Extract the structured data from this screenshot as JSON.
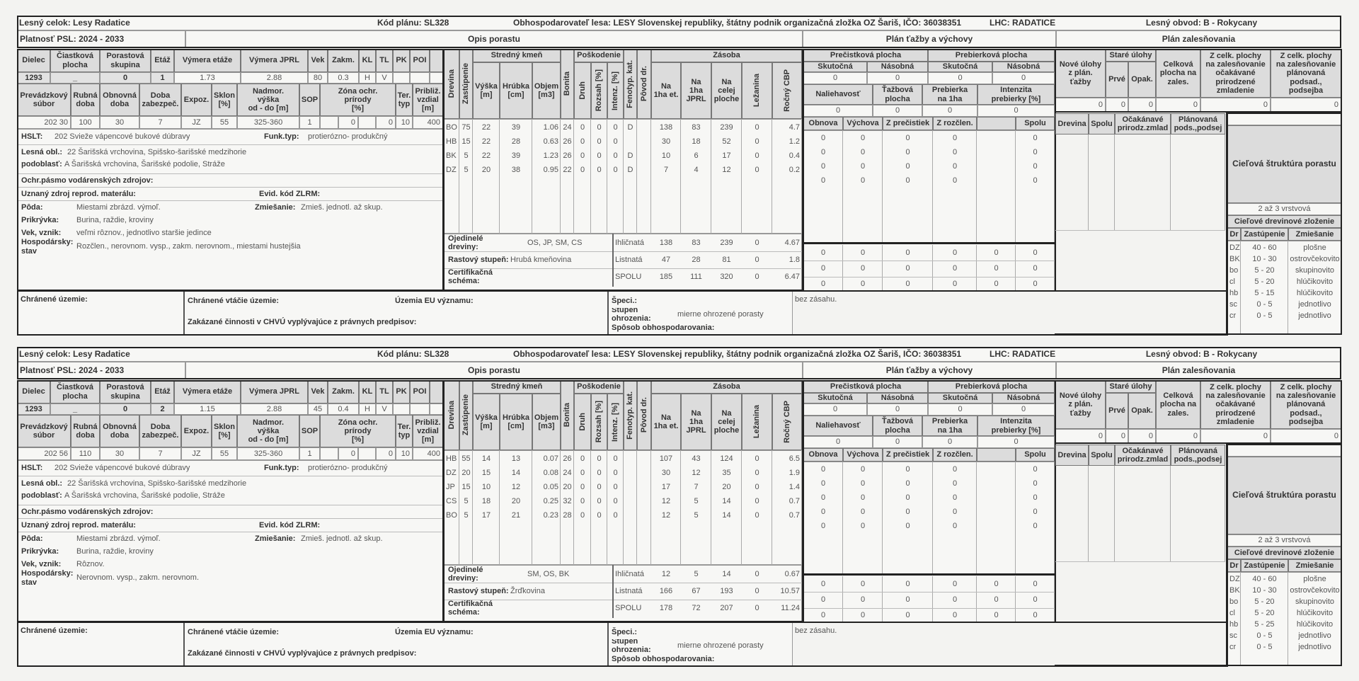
{
  "labels": {
    "stand_h1": [
      "Dielec",
      "Čiastková\nplocha",
      "Porastová\nskupina",
      "Etáž",
      "Výmera etáže",
      "Výmera JPRL",
      "Vek",
      "Zakm.",
      "KL",
      "TL",
      "PK",
      "POI",
      ""
    ],
    "stand_h2": [
      "Prevádzkový\nsúbor",
      "Rubná\ndoba",
      "Obnovná\ndoba",
      "Doba\nzabezpeč.",
      "Expoz.",
      "Sklon\n[%]",
      "Nadmor.\nvýška\nod - do [m]",
      "SOP",
      "Zóna ochr.\nprírody\n[%]",
      "Ter.\ntyp",
      "Približ.\nvzdial\n[m]"
    ],
    "tree_groups": [
      "Stredný kmeň",
      "Poškodenie",
      "Zásoba"
    ],
    "tree_h": [
      "Drevina",
      "Zastúpenie",
      "Výška\n[m]",
      "Hrúbka\n[cm]",
      "Objem\n[m3]",
      "Bonita",
      "Druh",
      "Rozsah [%]",
      "Intenz. [%]",
      "Fenotyp. kat.",
      "Pôvod dr.",
      "Na\n1ha et.",
      "Na\n1ha\nJPRL",
      "Na\ncelej\nploche",
      "Ležanina",
      "Ročný CBP"
    ],
    "tazba_groups": [
      "Prečistková plocha",
      "Prebierková plocha"
    ],
    "tazba_sub": [
      "Skutočná",
      "Násobná",
      "Skutočná",
      "Násobná"
    ],
    "tazba_h2": [
      "Naliehavosť",
      "Ťažbová\nplocha",
      "Prebierka\nna 1ha",
      "Intenzita\nprebierky [%]"
    ],
    "tazba_h3": [
      "Obnova",
      "Výchova",
      "Z prečistiek",
      "Z rozčlen.",
      "",
      "Spolu"
    ],
    "zales_h": [
      "Nové úlohy\nz plán.\nťažby",
      "Staré úlohy",
      "Prvé",
      "Opak.",
      "Celková\nplocha na\nzales.",
      "Z celk. plochy\nna zalesňovanie\nočakávané\nprirodzené\nzmladenie",
      "Z celk. plochy\nna zalesňovanie\nplánovaná\npodsad.,\npodsejba"
    ],
    "zales_h2": [
      "Drevina",
      "Spolu",
      "Očakánavé\nprirodz.zmlad",
      "Plánovaná\npods.,podsej"
    ],
    "cielova": "Cieľová štruktúra porastu",
    "zlozenie_title": "Cieľové drevinové zloženie",
    "zlozenie_h": [
      "Dr",
      "Zastúpenie",
      "Zmiešanie"
    ],
    "info": {
      "hslt": "HSLT:",
      "funk": "Funk.typ:",
      "lesna_obl": "Lesná obl.:",
      "podoblast": "podoblasť:",
      "ochr": "Ochr.pásmo vodárenských zdrojov:",
      "uznany": "Uznaný zdroj reprod. materálu:",
      "evid": "Evid. kód ZLRM:",
      "poda": "Pôda:",
      "zmiesanie": "Zmiešanie:",
      "prikryvka": "Prikrývka:",
      "vek": "Vek, vznik:",
      "hosp": "Hospodársky:\nstav",
      "ojedinele": "Ojedinelé dreviny:",
      "rastovy": "Rastový stupeň:",
      "cert": "Certifikačná schéma:"
    },
    "bottom": {
      "chranene": "Chránené územie:",
      "vtacie": "Chránené vtáčie územie:",
      "eu": "Územia EU významu:",
      "zakazane": "Zakázané činnosti v CHVÚ vyplývajúce z právnych predpisov:",
      "speci": "Špeci.:",
      "stupen": "Stupeň ohrozenia:",
      "sposob": "Spôsob obhospodarovania:"
    }
  },
  "blocks": [
    {
      "header": {
        "lesny_celok": "Lesný celok: Lesy Radatice",
        "kod_planu": "Kód plánu: SL328",
        "obhospodarovatel": "Obhospodarovateľ lesa: LESY Slovenskej republiky, štátny podnik organizačná zložka OZ Šariš, IČO: 36038351",
        "lhc": "LHC: RADATICE",
        "lesny_obvod": "Lesný obvod: B - Rokycany",
        "platnost": "Platnosť PSL: 2024 - 2033",
        "opis": "Opis porastu",
        "plan_tazby": "Plán ťažby a výchovy",
        "plan_zales": "Plán zalesňovania"
      },
      "stand_v1": [
        "1293",
        "_",
        "0",
        "1",
        "1.73",
        "2.88",
        "80",
        "0.3",
        "H",
        "V",
        "",
        "",
        ""
      ],
      "stand_v2": [
        "202 30",
        "100",
        "30",
        "7",
        "JZ",
        "55",
        "325-360",
        "1",
        "",
        "0",
        "",
        "0",
        "10",
        "400"
      ],
      "info": {
        "hslt": "202 Svieže vápencové bukové dúbravy",
        "funk": "protierózno- produkčný",
        "lesna_obl": "22 Šarišská vrchovina, Spišsko-šarišské medzihorie",
        "podoblast": "A Šarišská vrchovina, Šarišské podolie, Stráže",
        "poda": "Miestami zbrázd. výmoľ.",
        "zmiesanie": "Zmieš. jednotl. až skup.",
        "prikryvka": "Burina, raždie, kroviny",
        "vek": "veľmi rôznov., jednotlivo staršie jedince",
        "hosp": "Rozčlen., nerovnom. vysp., zakm. nerovnom., miestami hustejšia",
        "ojedinele": "OS, JP, SM, CS",
        "rastovy": "Hrubá kmeňovina"
      },
      "trees": [
        [
          "BO",
          "75",
          "22",
          "39",
          "1.06",
          "24",
          "0",
          "0",
          "0",
          "D",
          "",
          "138",
          "83",
          "239",
          "0",
          "4.7"
        ],
        [
          "HB",
          "15",
          "22",
          "28",
          "0.63",
          "26",
          "0",
          "0",
          "0",
          "",
          "",
          "30",
          "18",
          "52",
          "0",
          "1.2"
        ],
        [
          "BK",
          "5",
          "22",
          "39",
          "1.23",
          "26",
          "0",
          "0",
          "0",
          "D",
          "",
          "10",
          "6",
          "17",
          "0",
          "0.4"
        ],
        [
          "DZ",
          "5",
          "20",
          "38",
          "0.95",
          "22",
          "0",
          "0",
          "0",
          "D",
          "",
          "7",
          "4",
          "12",
          "0",
          "0.2"
        ]
      ],
      "summary": [
        [
          "Ihličnatá",
          "138",
          "83",
          "239",
          "0",
          "4.67"
        ],
        [
          "Listnatá",
          "47",
          "28",
          "81",
          "0",
          "1.8"
        ],
        [
          "SPOLU",
          "185",
          "111",
          "320",
          "0",
          "6.47"
        ]
      ],
      "tazba_v1": [
        "0",
        "0",
        "0",
        "0"
      ],
      "tazba_v2": [
        "0",
        "0",
        "0",
        "0"
      ],
      "tazba_rows": [
        [
          "0",
          "0",
          "0",
          "0",
          "",
          "0"
        ],
        [
          "0",
          "0",
          "0",
          "0",
          "",
          "0"
        ],
        [
          "0",
          "0",
          "0",
          "0",
          "",
          "0"
        ],
        [
          "0",
          "0",
          "0",
          "0",
          "",
          "0"
        ]
      ],
      "tazba_totals": [
        [
          "0",
          "0",
          "0",
          "0",
          "0",
          "0"
        ],
        [
          "0",
          "0",
          "0",
          "0",
          "0",
          "0"
        ],
        [
          "0",
          "0",
          "0",
          "0",
          "0",
          "0"
        ]
      ],
      "zales_v": [
        "0",
        "0",
        "0",
        "0",
        "0",
        "0"
      ],
      "vrstvova": "2 až 3 vrstvová",
      "zlozenie": [
        [
          "DZ",
          "40 - 60",
          "plošne"
        ],
        [
          "BK",
          "10 - 30",
          "ostrovčekovito"
        ],
        [
          "bo",
          "5 - 20",
          "skupinovito"
        ],
        [
          "cl",
          "5 - 20",
          "hlúčikovito"
        ],
        [
          "hb",
          "5 - 15",
          "hlúčikovito"
        ],
        [
          "sc",
          "0 - 5",
          "jednotlivo"
        ],
        [
          "cr",
          "0 - 5",
          "jednotlivo"
        ]
      ],
      "bottom": {
        "stupen": "mierne ohrozené porasty",
        "bez": "bez zásahu."
      }
    },
    {
      "header": {
        "lesny_celok": "Lesný celok: Lesy Radatice",
        "kod_planu": "Kód plánu: SL328",
        "obhospodarovatel": "Obhospodarovateľ lesa: LESY Slovenskej republiky, štátny podnik organizačná zložka OZ Šariš, IČO: 36038351",
        "lhc": "LHC: RADATICE",
        "lesny_obvod": "Lesný obvod: B - Rokycany",
        "platnost": "Platnosť PSL: 2024 - 2033",
        "opis": "Opis porastu",
        "plan_tazby": "Plán ťažby a výchovy",
        "plan_zales": "Plán zalesňovania"
      },
      "stand_v1": [
        "1293",
        "_",
        "0",
        "2",
        "1.15",
        "2.88",
        "45",
        "0.4",
        "H",
        "V",
        "",
        "",
        ""
      ],
      "stand_v2": [
        "202 56",
        "110",
        "30",
        "7",
        "JZ",
        "55",
        "325-360",
        "1",
        "",
        "0",
        "",
        "0",
        "10",
        "400"
      ],
      "info": {
        "hslt": "202 Svieže vápencové bukové dúbravy",
        "funk": "protierózno- produkčný",
        "lesna_obl": "22 Šarišská vrchovina, Spišsko-šarišské medzihorie",
        "podoblast": "A Šarišská vrchovina, Šarišské podolie, Stráže",
        "poda": "Miestami zbrázd. výmoľ.",
        "zmiesanie": "Zmieš. jednotl. až skup.",
        "prikryvka": "Burina, raždie, kroviny",
        "vek": "Rôznov.",
        "hosp": "Nerovnom. vysp., zakm. nerovnom.",
        "ojedinele": "SM, OS, BK",
        "rastovy": "Žrďkovina"
      },
      "trees": [
        [
          "HB",
          "55",
          "14",
          "13",
          "0.07",
          "26",
          "0",
          "0",
          "0",
          "",
          "",
          "107",
          "43",
          "124",
          "0",
          "6.5"
        ],
        [
          "DZ",
          "20",
          "15",
          "14",
          "0.08",
          "24",
          "0",
          "0",
          "0",
          "",
          "",
          "30",
          "12",
          "35",
          "0",
          "1.9"
        ],
        [
          "JP",
          "15",
          "10",
          "12",
          "0.05",
          "20",
          "0",
          "0",
          "0",
          "",
          "",
          "17",
          "7",
          "20",
          "0",
          "1.4"
        ],
        [
          "CS",
          "5",
          "18",
          "20",
          "0.25",
          "32",
          "0",
          "0",
          "0",
          "",
          "",
          "12",
          "5",
          "14",
          "0",
          "0.7"
        ],
        [
          "BO",
          "5",
          "17",
          "21",
          "0.23",
          "28",
          "0",
          "0",
          "0",
          "",
          "",
          "12",
          "5",
          "14",
          "0",
          "0.7"
        ]
      ],
      "summary": [
        [
          "Ihličnatá",
          "12",
          "5",
          "14",
          "0",
          "0.67"
        ],
        [
          "Listnatá",
          "166",
          "67",
          "193",
          "0",
          "10.57"
        ],
        [
          "SPOLU",
          "178",
          "72",
          "207",
          "0",
          "11.24"
        ]
      ],
      "tazba_v1": [
        "0",
        "0",
        "0",
        "0"
      ],
      "tazba_v2": [
        "0",
        "0",
        "0",
        "0"
      ],
      "tazba_rows": [
        [
          "0",
          "0",
          "0",
          "0",
          "",
          "0"
        ],
        [
          "0",
          "0",
          "0",
          "0",
          "",
          "0"
        ],
        [
          "0",
          "0",
          "0",
          "0",
          "",
          "0"
        ],
        [
          "0",
          "0",
          "0",
          "0",
          "",
          "0"
        ],
        [
          "0",
          "0",
          "0",
          "0",
          "",
          "0"
        ]
      ],
      "tazba_totals": [
        [
          "0",
          "0",
          "0",
          "0",
          "0",
          "0"
        ],
        [
          "0",
          "0",
          "0",
          "0",
          "0",
          "0"
        ],
        [
          "0",
          "0",
          "0",
          "0",
          "0",
          "0"
        ]
      ],
      "zales_v": [
        "0",
        "0",
        "0",
        "0",
        "0",
        "0"
      ],
      "vrstvova": "2 až 3 vrstvová",
      "zlozenie": [
        [
          "DZ",
          "40 - 60",
          "plošne"
        ],
        [
          "BK",
          "10 - 30",
          "ostrovčekovito"
        ],
        [
          "bo",
          "5 - 20",
          "skupinovito"
        ],
        [
          "cl",
          "5 - 20",
          "hlúčikovito"
        ],
        [
          "hb",
          "5 - 25",
          "hlúčikovito"
        ],
        [
          "sc",
          "0 - 5",
          "jednotlivo"
        ],
        [
          "cr",
          "0 - 5",
          "jednotlivo"
        ]
      ],
      "bottom": {
        "stupen": "mierne ohrozené porasty",
        "bez": "bez zásahu."
      }
    }
  ]
}
